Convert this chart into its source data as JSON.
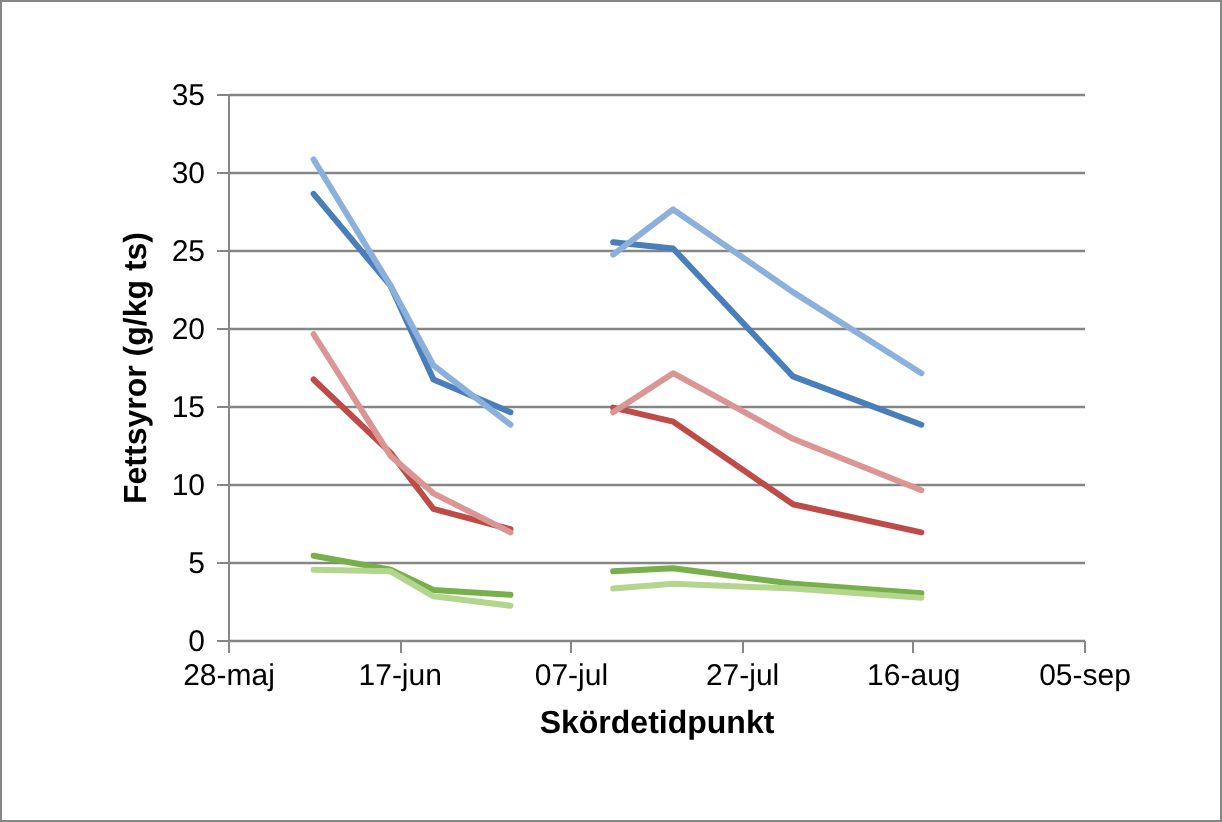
{
  "chart_data": {
    "type": "line",
    "xlabel": "Skördetidpunkt",
    "ylabel": "Fettsyror (g/kg ts)",
    "xlim": [
      "--05-28",
      "--09-05"
    ],
    "xticks": [
      {
        "value": "--05-28",
        "label": "28-maj"
      },
      {
        "value": "--06-17",
        "label": "17-jun"
      },
      {
        "value": "--07-07",
        "label": "07-jul"
      },
      {
        "value": "--07-27",
        "label": "27-jul"
      },
      {
        "value": "--08-16",
        "label": "16-aug"
      },
      {
        "value": "--09-05",
        "label": "05-sep"
      }
    ],
    "ylim": [
      0,
      35
    ],
    "yticks": [
      0,
      5,
      10,
      15,
      20,
      25,
      30,
      35
    ],
    "grid": "y",
    "legend": false,
    "marker": "none",
    "line_style": "solid",
    "series": [
      {
        "color": "#4a7ebb",
        "x": [
          "--06-07",
          "--06-16",
          "--06-21",
          "--06-30"
        ],
        "values": [
          28.6,
          22.7,
          16.7,
          14.6
        ]
      },
      {
        "color": "#8cb0dc",
        "x": [
          "--06-07",
          "--06-16",
          "--06-21",
          "--06-30"
        ],
        "values": [
          30.8,
          22.7,
          17.6,
          13.8
        ]
      },
      {
        "color": "#be4b48",
        "x": [
          "--06-07",
          "--06-16",
          "--06-21",
          "--06-30"
        ],
        "values": [
          16.7,
          12.0,
          8.4,
          7.1
        ]
      },
      {
        "color": "#d99694",
        "x": [
          "--06-07",
          "--06-16",
          "--06-21",
          "--06-30"
        ],
        "values": [
          19.6,
          11.8,
          9.4,
          6.9
        ]
      },
      {
        "color": "#77b04a",
        "x": [
          "--06-07",
          "--06-16",
          "--06-21",
          "--06-30"
        ],
        "values": [
          5.4,
          4.5,
          3.2,
          2.9
        ]
      },
      {
        "color": "#b4d58e",
        "x": [
          "--06-07",
          "--06-16",
          "--06-21",
          "--06-30"
        ],
        "values": [
          4.5,
          4.4,
          2.8,
          2.2
        ]
      },
      {
        "color": "#4a7ebb",
        "x": [
          "--07-12",
          "--07-19",
          "--08-02",
          "--08-17"
        ],
        "values": [
          25.5,
          25.1,
          16.9,
          13.8
        ]
      },
      {
        "color": "#8cb0dc",
        "x": [
          "--07-12",
          "--07-19",
          "--08-02",
          "--08-17"
        ],
        "values": [
          24.7,
          27.6,
          22.3,
          17.1
        ]
      },
      {
        "color": "#be4b48",
        "x": [
          "--07-12",
          "--07-19",
          "--08-02",
          "--08-17"
        ],
        "values": [
          14.9,
          14.0,
          8.7,
          6.9
        ]
      },
      {
        "color": "#d99694",
        "x": [
          "--07-12",
          "--07-19",
          "--08-02",
          "--08-17"
        ],
        "values": [
          14.6,
          17.1,
          12.9,
          9.6
        ]
      },
      {
        "color": "#77b04a",
        "x": [
          "--07-12",
          "--07-19",
          "--08-02",
          "--08-17"
        ],
        "values": [
          4.4,
          4.6,
          3.6,
          3.0
        ]
      },
      {
        "color": "#b4d58e",
        "x": [
          "--07-12",
          "--07-19",
          "--08-02",
          "--08-17"
        ],
        "values": [
          3.3,
          3.6,
          3.3,
          2.7
        ]
      }
    ]
  }
}
